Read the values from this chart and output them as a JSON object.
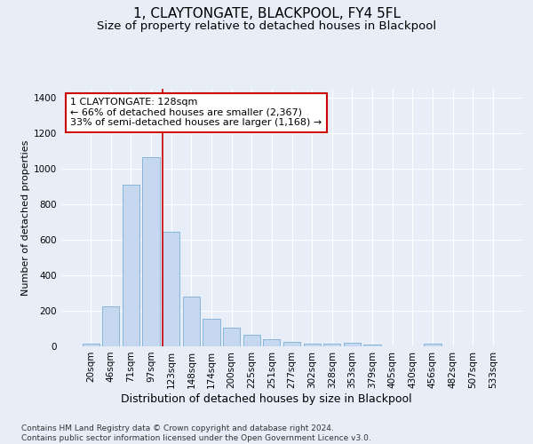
{
  "title": "1, CLAYTONGATE, BLACKPOOL, FY4 5FL",
  "subtitle": "Size of property relative to detached houses in Blackpool",
  "xlabel": "Distribution of detached houses by size in Blackpool",
  "ylabel": "Number of detached properties",
  "categories": [
    "20sqm",
    "46sqm",
    "71sqm",
    "97sqm",
    "123sqm",
    "148sqm",
    "174sqm",
    "200sqm",
    "225sqm",
    "251sqm",
    "277sqm",
    "302sqm",
    "328sqm",
    "353sqm",
    "379sqm",
    "405sqm",
    "430sqm",
    "456sqm",
    "482sqm",
    "507sqm",
    "533sqm"
  ],
  "values": [
    15,
    225,
    910,
    1065,
    645,
    280,
    155,
    105,
    65,
    40,
    27,
    15,
    15,
    20,
    10,
    0,
    0,
    15,
    0,
    0,
    0
  ],
  "bar_color": "#c5d8f0",
  "bar_edgecolor": "#7bafd4",
  "marker_color": "#cc0000",
  "annotation_text": "1 CLAYTONGATE: 128sqm\n← 66% of detached houses are smaller (2,367)\n33% of semi-detached houses are larger (1,168) →",
  "annotation_box_edgecolor": "#cc0000",
  "ylim_max": 1450,
  "yticks": [
    0,
    200,
    400,
    600,
    800,
    1000,
    1200,
    1400
  ],
  "bg_color": "#e8eef8",
  "footer_text": "Contains HM Land Registry data © Crown copyright and database right 2024.\nContains public sector information licensed under the Open Government Licence v3.0.",
  "title_fontsize": 11,
  "subtitle_fontsize": 9.5,
  "xlabel_fontsize": 9,
  "ylabel_fontsize": 8,
  "tick_fontsize": 7.5,
  "annotation_fontsize": 8,
  "footer_fontsize": 6.5
}
